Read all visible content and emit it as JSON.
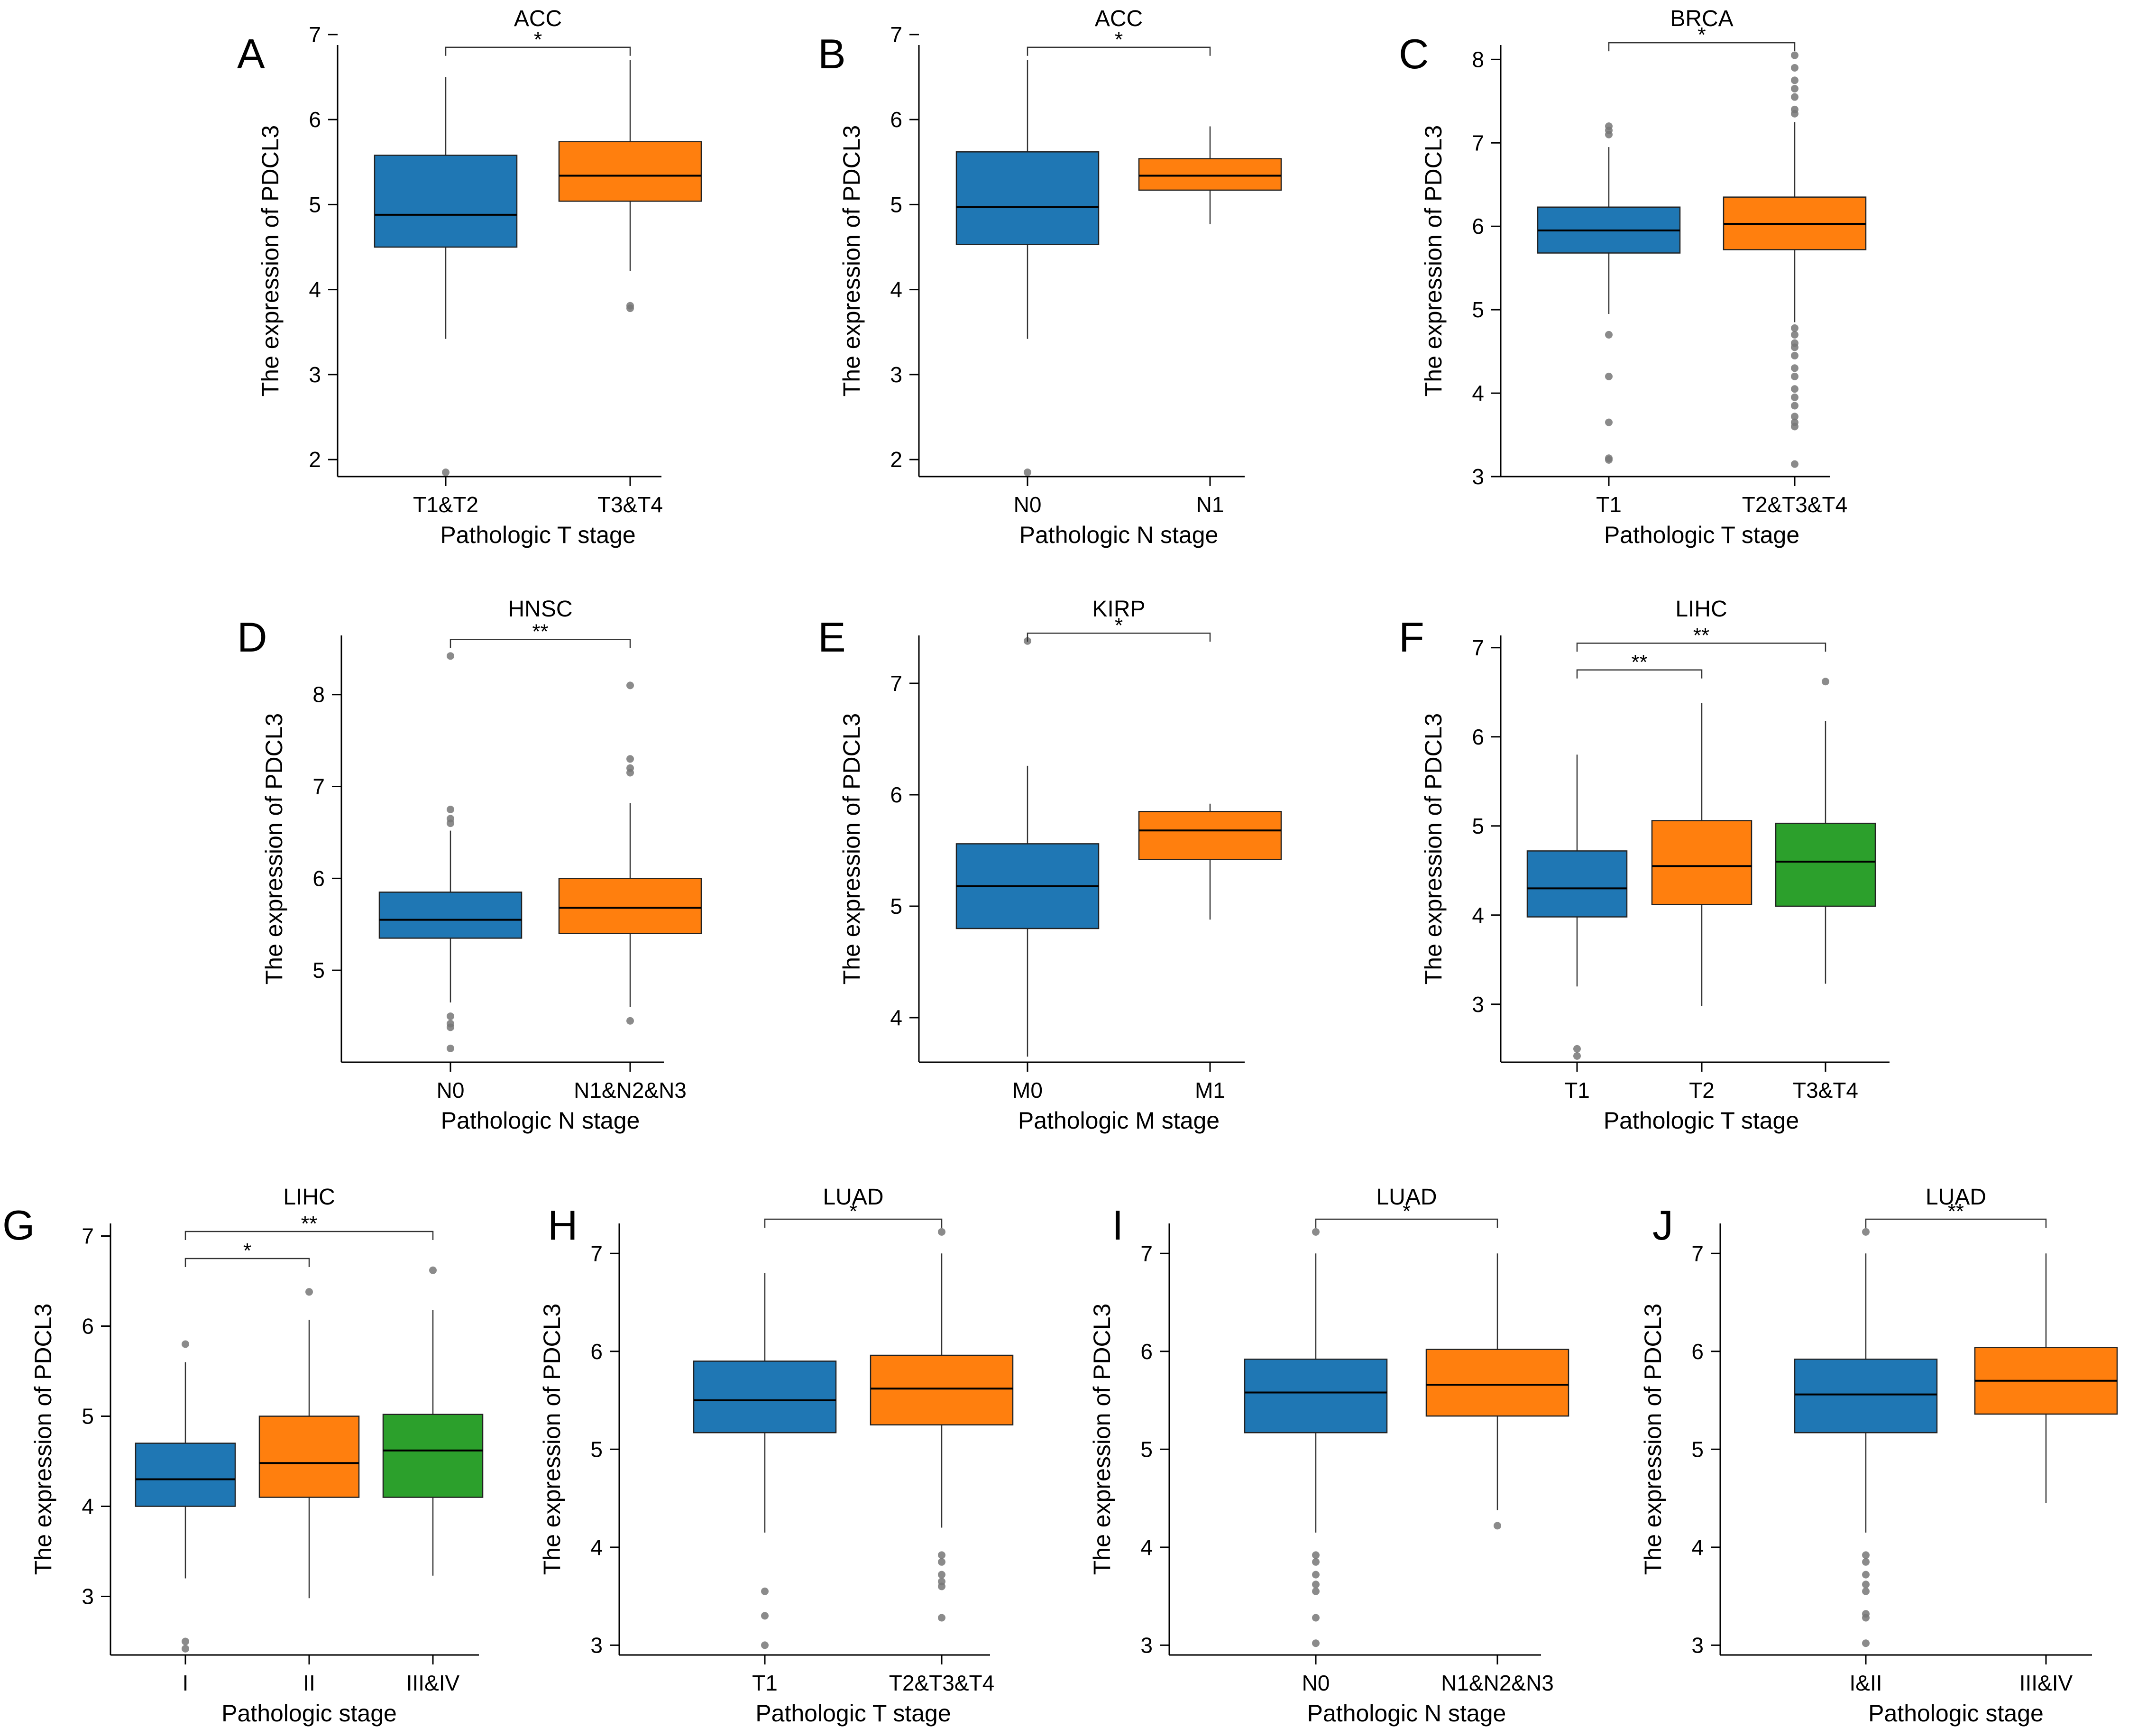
{
  "figure": {
    "y_axis_label": "The expression of PDCL3",
    "colors": {
      "blue": "#1f77b4",
      "orange": "#ff7f0e",
      "green": "#2ca02c",
      "outlier": "#777777",
      "axis": "#000000"
    }
  },
  "chart_data": [
    {
      "panel": "A",
      "type": "boxplot",
      "title": "ACC",
      "xlabel": "Pathologic T stage",
      "ylabel": "The expression of PDCL3",
      "ylim": [
        1.8,
        7.1
      ],
      "yticks": [
        2,
        3,
        4,
        5,
        6,
        7
      ],
      "categories": [
        "T1&T2",
        "T3&T4"
      ],
      "boxes": [
        {
          "category": "T1&T2",
          "color": "blue",
          "whisker_low": 3.42,
          "q1": 4.5,
          "median": 4.88,
          "q3": 5.58,
          "whisker_high": 6.5,
          "outliers": [
            1.85
          ]
        },
        {
          "category": "T3&T4",
          "color": "orange",
          "whisker_low": 4.22,
          "q1": 5.04,
          "median": 5.34,
          "q3": 5.74,
          "whisker_high": 6.7,
          "outliers": [
            3.78,
            3.81
          ]
        }
      ],
      "significance": [
        {
          "from": "T1&T2",
          "to": "T3&T4",
          "label": "*",
          "y": 6.85
        }
      ]
    },
    {
      "panel": "B",
      "type": "boxplot",
      "title": "ACC",
      "xlabel": "Pathologic N stage",
      "ylabel": "The expression of PDCL3",
      "ylim": [
        1.8,
        7.1
      ],
      "yticks": [
        2,
        3,
        4,
        5,
        6,
        7
      ],
      "categories": [
        "N0",
        "N1"
      ],
      "boxes": [
        {
          "category": "N0",
          "color": "blue",
          "whisker_low": 3.42,
          "q1": 4.53,
          "median": 4.97,
          "q3": 5.62,
          "whisker_high": 6.7,
          "outliers": [
            1.85
          ]
        },
        {
          "category": "N1",
          "color": "orange",
          "whisker_low": 4.77,
          "q1": 5.17,
          "median": 5.34,
          "q3": 5.54,
          "whisker_high": 5.92,
          "outliers": []
        }
      ],
      "significance": [
        {
          "from": "N0",
          "to": "N1",
          "label": "*",
          "y": 6.85
        }
      ]
    },
    {
      "panel": "C",
      "type": "boxplot",
      "title": "BRCA",
      "xlabel": "Pathologic T stage",
      "ylabel": "The expression of PDCL3",
      "ylim": [
        3.0,
        8.4
      ],
      "yticks": [
        3,
        4,
        5,
        6,
        7,
        8
      ],
      "categories": [
        "T1",
        "T2&T3&T4"
      ],
      "boxes": [
        {
          "category": "T1",
          "color": "blue",
          "whisker_low": 4.95,
          "q1": 5.68,
          "median": 5.95,
          "q3": 6.23,
          "whisker_high": 6.95,
          "outliers": [
            3.2,
            3.22,
            3.65,
            4.2,
            4.7,
            7.1,
            7.15,
            7.2
          ]
        },
        {
          "category": "T2&T3&T4",
          "color": "orange",
          "whisker_low": 4.85,
          "q1": 5.72,
          "median": 6.03,
          "q3": 6.35,
          "whisker_high": 7.25,
          "outliers": [
            3.15,
            3.6,
            3.65,
            3.72,
            3.85,
            3.95,
            4.05,
            4.2,
            4.3,
            4.45,
            4.55,
            4.6,
            4.7,
            4.78,
            7.35,
            7.4,
            7.55,
            7.65,
            7.75,
            7.9,
            8.05
          ]
        }
      ],
      "significance": [
        {
          "from": "T1",
          "to": "T2&T3&T4",
          "label": "*",
          "y": 8.2
        }
      ]
    },
    {
      "panel": "D",
      "type": "boxplot",
      "title": "HNSC",
      "xlabel": "Pathologic N stage",
      "ylabel": "The expression of PDCL3",
      "ylim": [
        4.0,
        8.85
      ],
      "yticks": [
        5,
        6,
        7,
        8
      ],
      "categories": [
        "N0",
        "N1&N2&N3"
      ],
      "boxes": [
        {
          "category": "N0",
          "color": "blue",
          "whisker_low": 4.65,
          "q1": 5.35,
          "median": 5.55,
          "q3": 5.85,
          "whisker_high": 6.52,
          "outliers": [
            4.15,
            4.38,
            4.42,
            4.5,
            6.6,
            6.65,
            6.75,
            8.42
          ]
        },
        {
          "category": "N1&N2&N3",
          "color": "orange",
          "whisker_low": 4.6,
          "q1": 5.4,
          "median": 5.68,
          "q3": 6.0,
          "whisker_high": 6.82,
          "outliers": [
            4.45,
            7.15,
            7.2,
            7.3,
            8.1
          ]
        }
      ],
      "significance": [
        {
          "from": "N0",
          "to": "N1&N2&N3",
          "label": "**",
          "y": 8.6
        }
      ]
    },
    {
      "panel": "E",
      "type": "boxplot",
      "title": "KIRP",
      "xlabel": "Pathologic M stage",
      "ylabel": "The expression of PDCL3",
      "ylim": [
        3.6,
        7.6
      ],
      "yticks": [
        4,
        5,
        6,
        7
      ],
      "categories": [
        "M0",
        "M1"
      ],
      "boxes": [
        {
          "category": "M0",
          "color": "blue",
          "whisker_low": 3.65,
          "q1": 4.8,
          "median": 5.18,
          "q3": 5.56,
          "whisker_high": 6.26,
          "outliers": [
            7.38
          ]
        },
        {
          "category": "M1",
          "color": "orange",
          "whisker_low": 4.88,
          "q1": 5.42,
          "median": 5.68,
          "q3": 5.85,
          "whisker_high": 5.92,
          "outliers": []
        }
      ],
      "significance": [
        {
          "from": "M0",
          "to": "M1",
          "label": "*",
          "y": 7.45
        }
      ]
    },
    {
      "panel": "F",
      "type": "boxplot",
      "title": "LIHC",
      "xlabel": "Pathologic T stage",
      "ylabel": "The expression of PDCL3",
      "ylim": [
        2.35,
        7.35
      ],
      "yticks": [
        3,
        4,
        5,
        6,
        7
      ],
      "categories": [
        "T1",
        "T2",
        "T3&T4"
      ],
      "boxes": [
        {
          "category": "T1",
          "color": "blue",
          "whisker_low": 3.2,
          "q1": 3.98,
          "median": 4.3,
          "q3": 4.72,
          "whisker_high": 5.8,
          "outliers": [
            2.42,
            2.5
          ]
        },
        {
          "category": "T2",
          "color": "orange",
          "whisker_low": 2.98,
          "q1": 4.12,
          "median": 4.55,
          "q3": 5.06,
          "whisker_high": 6.38,
          "outliers": []
        },
        {
          "category": "T3&T4",
          "color": "green",
          "whisker_low": 3.23,
          "q1": 4.1,
          "median": 4.6,
          "q3": 5.03,
          "whisker_high": 6.18,
          "outliers": [
            6.62
          ]
        }
      ],
      "significance": [
        {
          "from": "T1",
          "to": "T2",
          "label": "**",
          "y": 6.75
        },
        {
          "from": "T1",
          "to": "T3&T4",
          "label": "**",
          "y": 7.05
        }
      ]
    },
    {
      "panel": "G",
      "type": "boxplot",
      "title": "LIHC",
      "xlabel": "Pathologic stage",
      "ylabel": "The expression of PDCL3",
      "ylim": [
        2.35,
        7.35
      ],
      "yticks": [
        3,
        4,
        5,
        6,
        7
      ],
      "categories": [
        "I",
        "II",
        "III&IV"
      ],
      "boxes": [
        {
          "category": "I",
          "color": "blue",
          "whisker_low": 3.2,
          "q1": 4.0,
          "median": 4.3,
          "q3": 4.7,
          "whisker_high": 5.6,
          "outliers": [
            2.42,
            2.5,
            5.8
          ]
        },
        {
          "category": "II",
          "color": "orange",
          "whisker_low": 2.98,
          "q1": 4.1,
          "median": 4.48,
          "q3": 5.0,
          "whisker_high": 6.07,
          "outliers": [
            6.38
          ]
        },
        {
          "category": "III&IV",
          "color": "green",
          "whisker_low": 3.23,
          "q1": 4.1,
          "median": 4.62,
          "q3": 5.02,
          "whisker_high": 6.18,
          "outliers": [
            6.62
          ]
        }
      ],
      "significance": [
        {
          "from": "I",
          "to": "II",
          "label": "*",
          "y": 6.75
        },
        {
          "from": "I",
          "to": "III&IV",
          "label": "**",
          "y": 7.05
        }
      ]
    },
    {
      "panel": "H",
      "type": "boxplot",
      "title": "LUAD",
      "xlabel": "Pathologic T stage",
      "ylabel": "The expression of PDCL3",
      "ylim": [
        2.9,
        7.5
      ],
      "yticks": [
        3,
        4,
        5,
        6,
        7
      ],
      "categories": [
        "T1",
        "T2&T3&T4"
      ],
      "boxes": [
        {
          "category": "T1",
          "color": "blue",
          "whisker_low": 4.15,
          "q1": 5.17,
          "median": 5.5,
          "q3": 5.9,
          "whisker_high": 6.8,
          "outliers": [
            3.0,
            3.3,
            3.55
          ]
        },
        {
          "category": "T2&T3&T4",
          "color": "orange",
          "whisker_low": 4.2,
          "q1": 5.25,
          "median": 5.62,
          "q3": 5.96,
          "whisker_high": 7.0,
          "outliers": [
            3.28,
            3.6,
            3.65,
            3.72,
            3.85,
            3.92,
            7.22
          ]
        }
      ],
      "significance": [
        {
          "from": "T1",
          "to": "T2&T3&T4",
          "label": "*",
          "y": 7.35
        }
      ]
    },
    {
      "panel": "I",
      "type": "boxplot",
      "title": "LUAD",
      "xlabel": "Pathologic N stage",
      "ylabel": "The expression of PDCL3",
      "ylim": [
        2.9,
        7.5
      ],
      "yticks": [
        3,
        4,
        5,
        6,
        7
      ],
      "categories": [
        "N0",
        "N1&N2&N3"
      ],
      "boxes": [
        {
          "category": "N0",
          "color": "blue",
          "whisker_low": 4.15,
          "q1": 5.17,
          "median": 5.58,
          "q3": 5.92,
          "whisker_high": 7.0,
          "outliers": [
            3.02,
            3.28,
            3.55,
            3.62,
            3.72,
            3.85,
            3.92,
            7.22
          ]
        },
        {
          "category": "N1&N2&N3",
          "color": "orange",
          "whisker_low": 4.38,
          "q1": 5.34,
          "median": 5.66,
          "q3": 6.02,
          "whisker_high": 7.0,
          "outliers": [
            4.22
          ]
        }
      ],
      "significance": [
        {
          "from": "N0",
          "to": "N1&N2&N3",
          "label": "*",
          "y": 7.35
        }
      ]
    },
    {
      "panel": "J",
      "type": "boxplot",
      "title": "LUAD",
      "xlabel": "Pathologic stage",
      "ylabel": "The expression of PDCL3",
      "ylim": [
        2.9,
        7.5
      ],
      "yticks": [
        3,
        4,
        5,
        6,
        7
      ],
      "categories": [
        "I&II",
        "III&IV"
      ],
      "boxes": [
        {
          "category": "I&II",
          "color": "blue",
          "whisker_low": 4.15,
          "q1": 5.17,
          "median": 5.56,
          "q3": 5.92,
          "whisker_high": 7.0,
          "outliers": [
            3.02,
            3.28,
            3.32,
            3.55,
            3.62,
            3.72,
            3.85,
            3.92,
            7.22
          ]
        },
        {
          "category": "III&IV",
          "color": "orange",
          "whisker_low": 4.45,
          "q1": 5.36,
          "median": 5.7,
          "q3": 6.04,
          "whisker_high": 7.0,
          "outliers": []
        }
      ],
      "significance": [
        {
          "from": "I&II",
          "to": "III&IV",
          "label": "**",
          "y": 7.35
        }
      ]
    }
  ]
}
